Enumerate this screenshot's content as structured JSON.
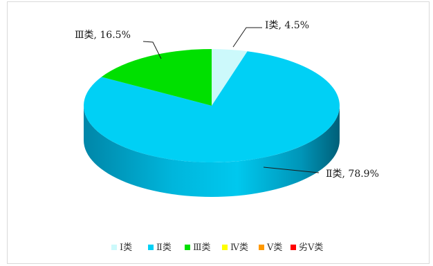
{
  "chart_data": {
    "type": "pie",
    "title": "",
    "categories": [
      "Ⅰ类",
      "Ⅱ类",
      "Ⅲ类",
      "Ⅳ类",
      "Ⅴ类",
      "劣Ⅴ类"
    ],
    "values": [
      4.5,
      78.9,
      16.5,
      0,
      0,
      0
    ],
    "unit": "%",
    "colors": [
      "#ccf9fb",
      "#00d0f5",
      "#00e000",
      "#ffff00",
      "#ff9900",
      "#ff0000"
    ],
    "slice_labels": [
      {
        "category": "Ⅰ类",
        "text": "Ⅰ类, 4.5%"
      },
      {
        "category": "Ⅱ类",
        "text": "Ⅱ类, 78.9%"
      },
      {
        "category": "Ⅲ类",
        "text": "Ⅲ类, 16.5%"
      }
    ],
    "legend_position": "bottom",
    "style": "3d"
  }
}
